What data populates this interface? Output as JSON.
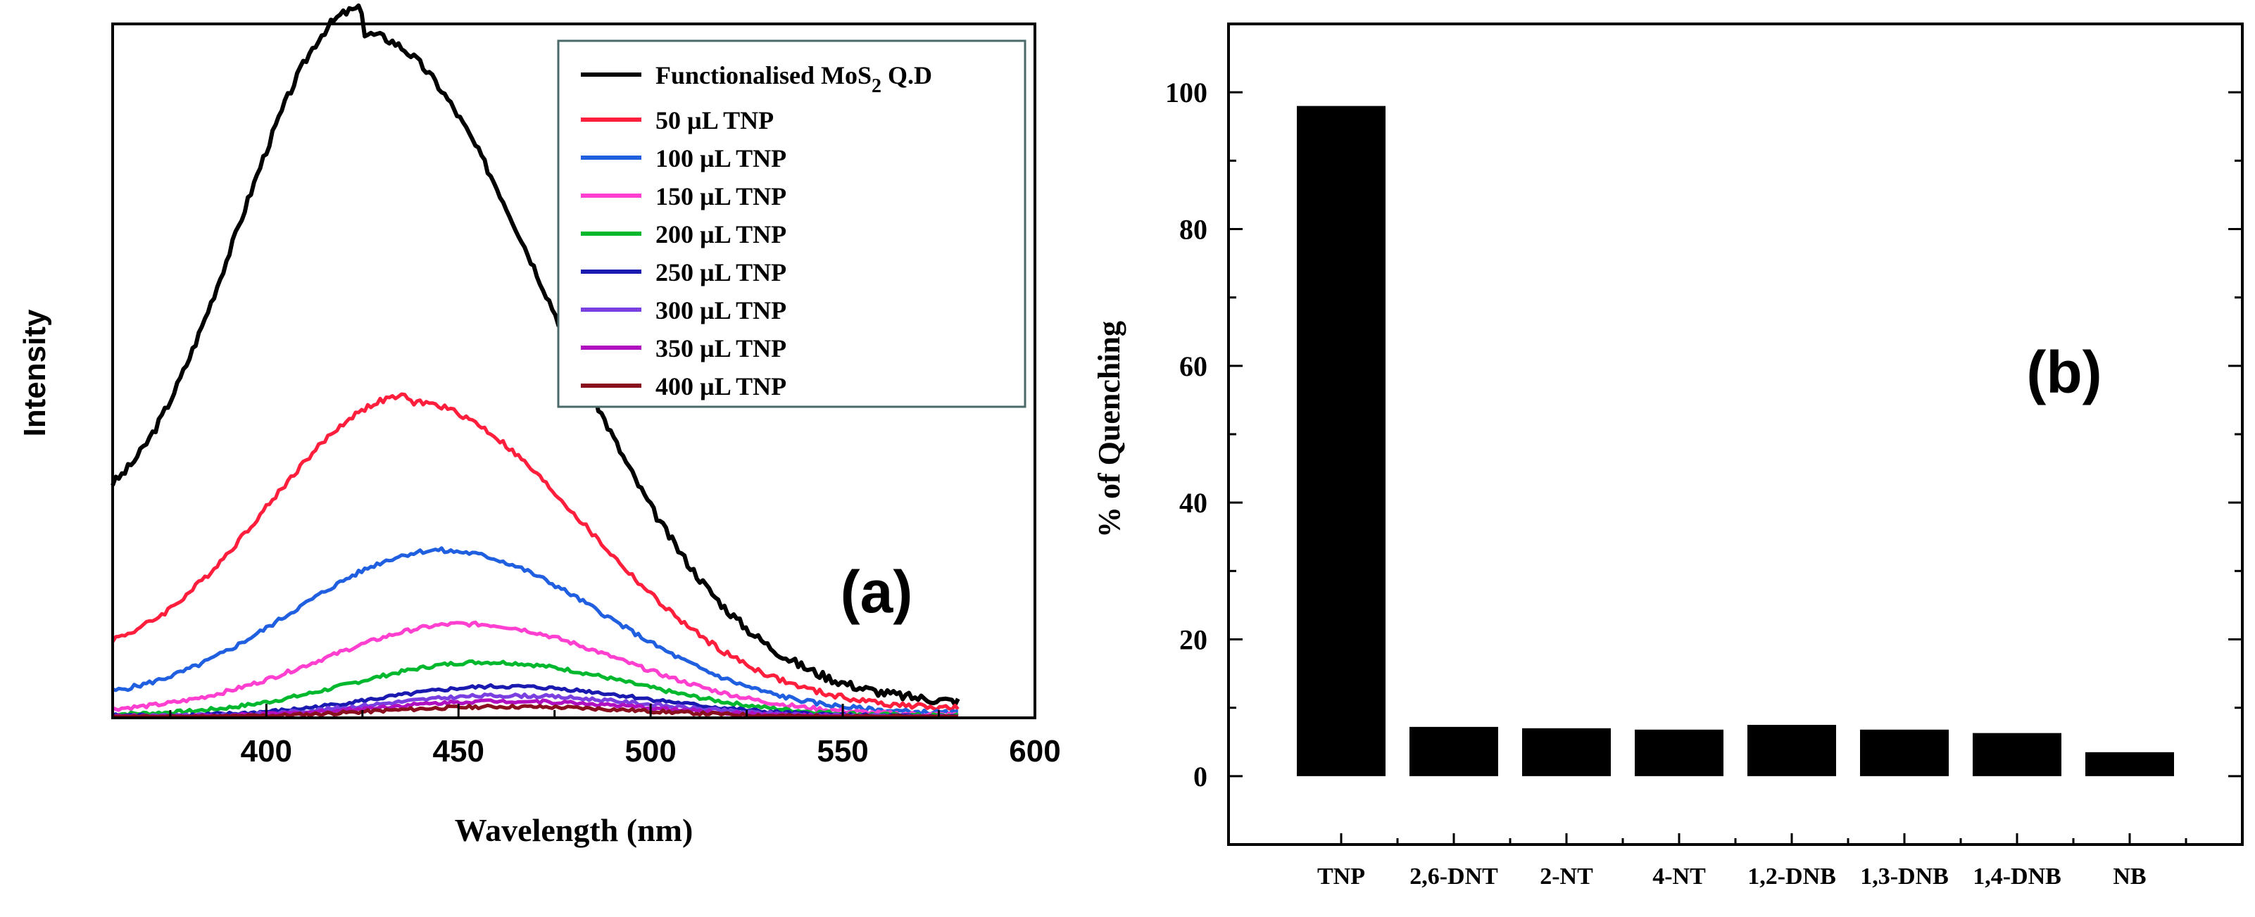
{
  "chart_data": [
    {
      "type": "line",
      "panel_label": "(a)",
      "xlabel": "Wavelength (nm)",
      "ylabel": "Intensity",
      "xlim": [
        360,
        600
      ],
      "ylim": [
        0,
        1.0
      ],
      "x_ticks": [
        400,
        450,
        500,
        550,
        600
      ],
      "y_ticks_shown": false,
      "legend_placement": "top-right",
      "series": [
        {
          "name": "Functionalised MoS",
          "name_sub": "2",
          "name_suffix": " Q.D",
          "color": "#000000",
          "peak_x": 425,
          "peak": 0.985,
          "sigma_left": 34,
          "sigma_right": 48,
          "start_value": 0.18,
          "end_value": 0.02
        },
        {
          "name": "50 µL TNP",
          "color": "#ff1f3d",
          "peak_x": 437,
          "peak": 0.455,
          "sigma_left": 38,
          "sigma_right": 45,
          "start_value": 0.055,
          "end_value": 0.012
        },
        {
          "name": "100 µL TNP",
          "color": "#1f5fe0",
          "peak_x": 446,
          "peak": 0.24,
          "sigma_left": 40,
          "sigma_right": 42,
          "start_value": 0.015,
          "end_value": 0.006
        },
        {
          "name": "150 µL TNP",
          "color": "#ff3fcf",
          "peak_x": 452,
          "peak": 0.135,
          "sigma_left": 38,
          "sigma_right": 40,
          "start_value": 0.006,
          "end_value": 0.004
        },
        {
          "name": "200 µL TNP",
          "color": "#00b82e",
          "peak_x": 457,
          "peak": 0.08,
          "sigma_left": 35,
          "sigma_right": 38,
          "start_value": 0.004,
          "end_value": 0.003
        },
        {
          "name": "250 µL TNP",
          "color": "#1a1ab0",
          "peak_x": 462,
          "peak": 0.045,
          "sigma_left": 33,
          "sigma_right": 36,
          "start_value": 0.003,
          "end_value": 0.002
        },
        {
          "name": "300 µL TNP",
          "color": "#7a3fe0",
          "peak_x": 462,
          "peak": 0.032,
          "sigma_left": 33,
          "sigma_right": 36,
          "start_value": 0.002,
          "end_value": 0.002
        },
        {
          "name": "350 µL TNP",
          "color": "#b010c0",
          "peak_x": 462,
          "peak": 0.024,
          "sigma_left": 33,
          "sigma_right": 36,
          "start_value": 0.002,
          "end_value": 0.001
        },
        {
          "name": "400 µL TNP",
          "color": "#8a1020",
          "peak_x": 462,
          "peak": 0.016,
          "sigma_left": 33,
          "sigma_right": 36,
          "start_value": 0.001,
          "end_value": 0.001
        }
      ]
    },
    {
      "type": "bar",
      "panel_label": "(b)",
      "ylabel": "% of Quenching",
      "xlabel": "",
      "ylim": [
        -10,
        110
      ],
      "y_ticks": [
        0,
        20,
        40,
        60,
        80,
        100
      ],
      "categories": [
        "TNP",
        "2,6-DNT",
        "2-NT",
        "4-NT",
        "1,2-DNB",
        "1,3-DNB",
        "1,4-DNB",
        "NB"
      ],
      "values": [
        98,
        7.2,
        7.0,
        6.8,
        7.5,
        6.8,
        6.3,
        3.5
      ],
      "bar_color": "#000000"
    }
  ]
}
